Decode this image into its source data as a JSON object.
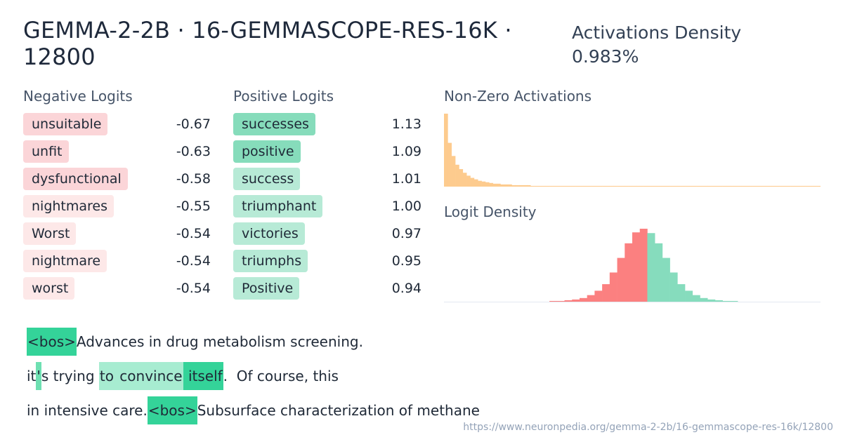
{
  "header": {
    "title": "GEMMA-2-2B · 16-GEMMASCOPE-RES-16K · 12800",
    "density_label": "Activations Density",
    "density_value": "0.983%"
  },
  "colors": {
    "neg_strong": "#fbd5d8",
    "neg_light": "#fde8e8",
    "pos_strong": "#86dcbb",
    "pos_light": "#b7ead6",
    "act_bar": "#fdcb8e",
    "logit_neg": "#fb8080",
    "logit_pos": "#86dcbd",
    "token_hi": "#34d399",
    "token_mid": "#6ee0b2",
    "token_lo": "#a7ecd1"
  },
  "negative_logits": {
    "label": "Negative Logits",
    "items": [
      {
        "token": "unsuitable",
        "value": "-0.67",
        "tone": "strong"
      },
      {
        "token": "unfit",
        "value": "-0.63",
        "tone": "strong"
      },
      {
        "token": "dysfunctional",
        "value": "-0.58",
        "tone": "strong"
      },
      {
        "token": "nightmares",
        "value": "-0.55",
        "tone": "light"
      },
      {
        "token": "Worst",
        "value": "-0.54",
        "tone": "light"
      },
      {
        "token": "nightmare",
        "value": "-0.54",
        "tone": "light"
      },
      {
        "token": "worst",
        "value": "-0.54",
        "tone": "light"
      }
    ]
  },
  "positive_logits": {
    "label": "Positive Logits",
    "items": [
      {
        "token": "successes",
        "value": "1.13",
        "tone": "strong"
      },
      {
        "token": "positive",
        "value": "1.09",
        "tone": "strong"
      },
      {
        "token": "success",
        "value": "1.01",
        "tone": "light"
      },
      {
        "token": "triumphant",
        "value": "1.00",
        "tone": "light"
      },
      {
        "token": "victories",
        "value": "0.97",
        "tone": "light"
      },
      {
        "token": "triumphs",
        "value": "0.95",
        "tone": "light"
      },
      {
        "token": "Positive",
        "value": "0.94",
        "tone": "light"
      }
    ]
  },
  "nonzero_activations": {
    "label": "Non-Zero Activations"
  },
  "logit_density": {
    "label": "Logit Density"
  },
  "chart_data": [
    {
      "type": "bar",
      "name": "nonzero_activations_histogram",
      "values": [
        100,
        60,
        42,
        30,
        24,
        19,
        15,
        12,
        10,
        8,
        7,
        6,
        5,
        4,
        4,
        3,
        3,
        3,
        2,
        2,
        2,
        2,
        2,
        1,
        1,
        1,
        1,
        1,
        1,
        1,
        1,
        1,
        1,
        1,
        1,
        1,
        1,
        1,
        1,
        1,
        1,
        1,
        1,
        1,
        1,
        1,
        1,
        1,
        1,
        1,
        1,
        1,
        1,
        1,
        1,
        1,
        1,
        1,
        1,
        1,
        1,
        1,
        1,
        1,
        1,
        1,
        1,
        1,
        1,
        1,
        1,
        1,
        1,
        1,
        1,
        1,
        1,
        1,
        1,
        1,
        1,
        1,
        1,
        1,
        1,
        1,
        1,
        1,
        1,
        1,
        1,
        1,
        1,
        1,
        1,
        1,
        1,
        1,
        1,
        1
      ],
      "ylim": [
        0,
        100
      ]
    },
    {
      "type": "bar",
      "name": "logit_density_histogram",
      "values": [
        0,
        0,
        0,
        0,
        0,
        0,
        0,
        0,
        0,
        0,
        0,
        0,
        0,
        0,
        1,
        1,
        2,
        3,
        5,
        9,
        15,
        24,
        40,
        60,
        80,
        95,
        100,
        94,
        80,
        60,
        40,
        24,
        15,
        9,
        5,
        3,
        2,
        1,
        1,
        0,
        0,
        0,
        0,
        0,
        0,
        0,
        0,
        0,
        0,
        0
      ],
      "split_index": 27,
      "ylim": [
        0,
        100
      ]
    }
  ],
  "activation_lines": [
    [
      {
        "text": "<bos>",
        "level": "hi"
      },
      {
        "text": "Advances in drug metabolism screening.",
        "level": "none"
      }
    ],
    [
      {
        "text": "it",
        "level": "none"
      },
      {
        "text": "'",
        "level": "mid"
      },
      {
        "text": "s trying ",
        "level": "none"
      },
      {
        "text": "to",
        "level": "lo"
      },
      {
        "text": " convince",
        "level": "lo"
      },
      {
        "text": " itself",
        "level": "hi"
      },
      {
        "text": ".  Of course, this",
        "level": "none"
      }
    ],
    [
      {
        "text": "in intensive care.",
        "level": "none"
      },
      {
        "text": "<bos>",
        "level": "hi"
      },
      {
        "text": "Subsurface characterization of methane",
        "level": "none"
      }
    ]
  ],
  "footer": {
    "url": "https://www.neuronpedia.org/gemma-2-2b/16-gemmascope-res-16k/12800"
  }
}
